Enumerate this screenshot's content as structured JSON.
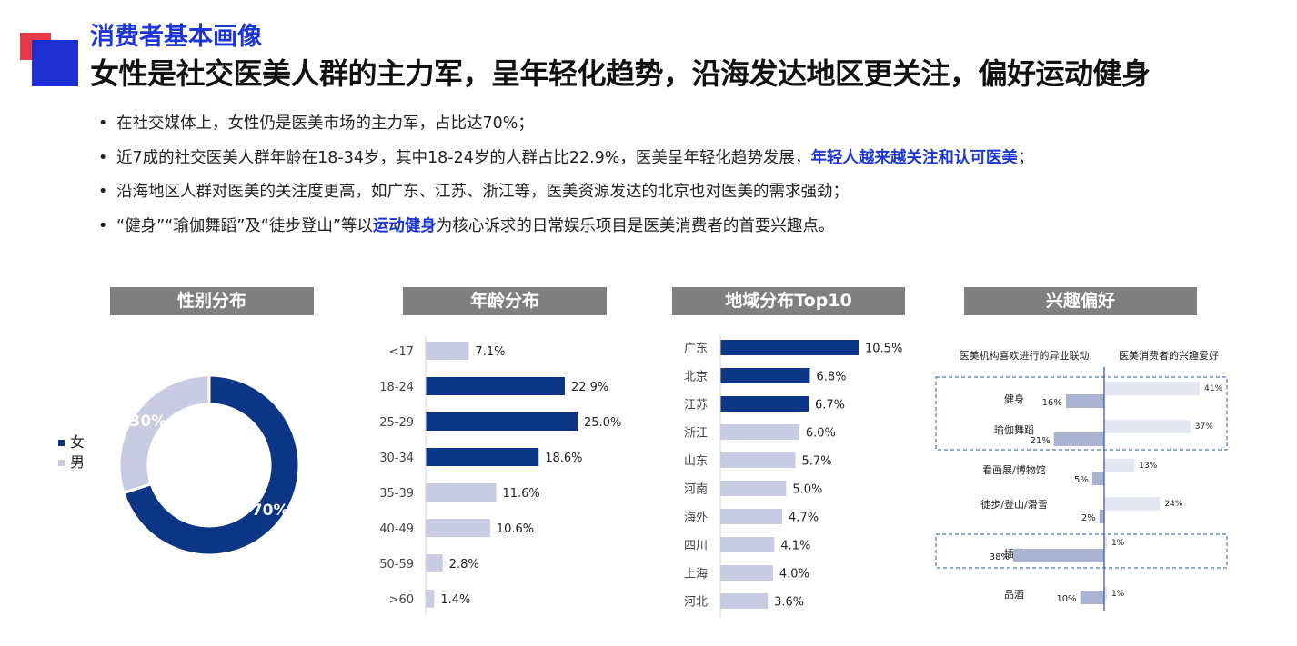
{
  "header": {
    "subtitle": "消费者基本画像",
    "title": "女性是社交医美人群的主力军，呈年轻化趋势，沿海发达地区更关注，偏好运动健身"
  },
  "bullets": [
    {
      "bullet": "•",
      "pre": "在社交媒体上，女性仍是医美市场的主力军，占比达70%；",
      "hl": "",
      "post": ""
    },
    {
      "bullet": "•",
      "pre": "近7成的社交医美人群年龄在18-34岁，其中18-24岁的人群占比22.9%，医美呈年轻化趋势发展，",
      "hl": "年轻人越来越关注和认可医美",
      "post": "；"
    },
    {
      "bullet": "•",
      "pre": "沿海地区人群对医美的关注度更高，如广东、江苏、浙江等，医美资源发达的北京也对医美的需求强劲；",
      "hl": "",
      "post": ""
    },
    {
      "bullet": "•",
      "pre": "“健身”“瑜伽舞蹈”及“徒步登山”等以",
      "hl": "运动健身",
      "post": "为核心诉求的日常娱乐项目是医美消费者的首要兴趣点。"
    }
  ],
  "panels": {
    "gender": "性别分布",
    "age": "年龄分布",
    "region": "地域分布Top10",
    "interest": "兴趣偏好"
  },
  "colors": {
    "dark": "#0d3585",
    "light": "#c8cbe1",
    "interest_light": "#e4e7f2",
    "interest_mid": "#aab4d2",
    "accent": "#1d36d4",
    "header_bg": "#7f7f7f"
  },
  "chart_data": [
    {
      "type": "pie",
      "title": "性别分布",
      "labels": [
        "女",
        "男"
      ],
      "values": [
        70,
        30
      ],
      "value_labels": [
        "70%",
        "30%"
      ],
      "donut": true,
      "legend": "left"
    },
    {
      "type": "bar",
      "orientation": "horizontal",
      "title": "年龄分布",
      "categories": [
        "<17",
        "18-24",
        "25-29",
        "30-34",
        "35-39",
        "40-49",
        "50-59",
        ">60"
      ],
      "values": [
        7.1,
        22.9,
        25.0,
        18.6,
        11.6,
        10.6,
        2.8,
        1.4
      ],
      "value_labels": [
        "7.1%",
        "22.9%",
        "25.0%",
        "18.6%",
        "11.6%",
        "10.6%",
        "2.8%",
        "1.4%"
      ],
      "highlight": [
        false,
        true,
        true,
        true,
        false,
        false,
        false,
        false
      ]
    },
    {
      "type": "bar",
      "orientation": "horizontal",
      "title": "地域分布Top10",
      "categories": [
        "广东",
        "北京",
        "江苏",
        "浙江",
        "山东",
        "河南",
        "海外",
        "四川",
        "上海",
        "河北"
      ],
      "values": [
        10.5,
        6.8,
        6.7,
        6.0,
        5.7,
        5.0,
        4.7,
        4.1,
        4.0,
        3.6
      ],
      "value_labels": [
        "10.5%",
        "6.8%",
        "6.7%",
        "6.0%",
        "5.7%",
        "5.0%",
        "4.7%",
        "4.1%",
        "4.0%",
        "3.6%"
      ],
      "highlight": [
        true,
        true,
        true,
        false,
        false,
        false,
        false,
        false,
        false,
        false
      ]
    },
    {
      "type": "bar",
      "orientation": "horizontal",
      "title": "兴趣偏好",
      "left_header": "医美机构喜欢进行的异业联动",
      "right_header": "医美消费者的兴趣爱好",
      "categories": [
        "健身",
        "瑜伽舞蹈",
        "看画展/博物馆",
        "徒步/登山/滑雪",
        "插花",
        "品酒"
      ],
      "series": [
        {
          "values": [
            16,
            21,
            5,
            2,
            38,
            10
          ],
          "value_labels": [
            "16%",
            "21%",
            "5%",
            "2%",
            "38%",
            "10%"
          ]
        },
        {
          "values": [
            41,
            37,
            13,
            24,
            1,
            1
          ],
          "value_labels": [
            "41%",
            "37%",
            "13%",
            "24%",
            "1%",
            "1%"
          ]
        }
      ]
    }
  ]
}
